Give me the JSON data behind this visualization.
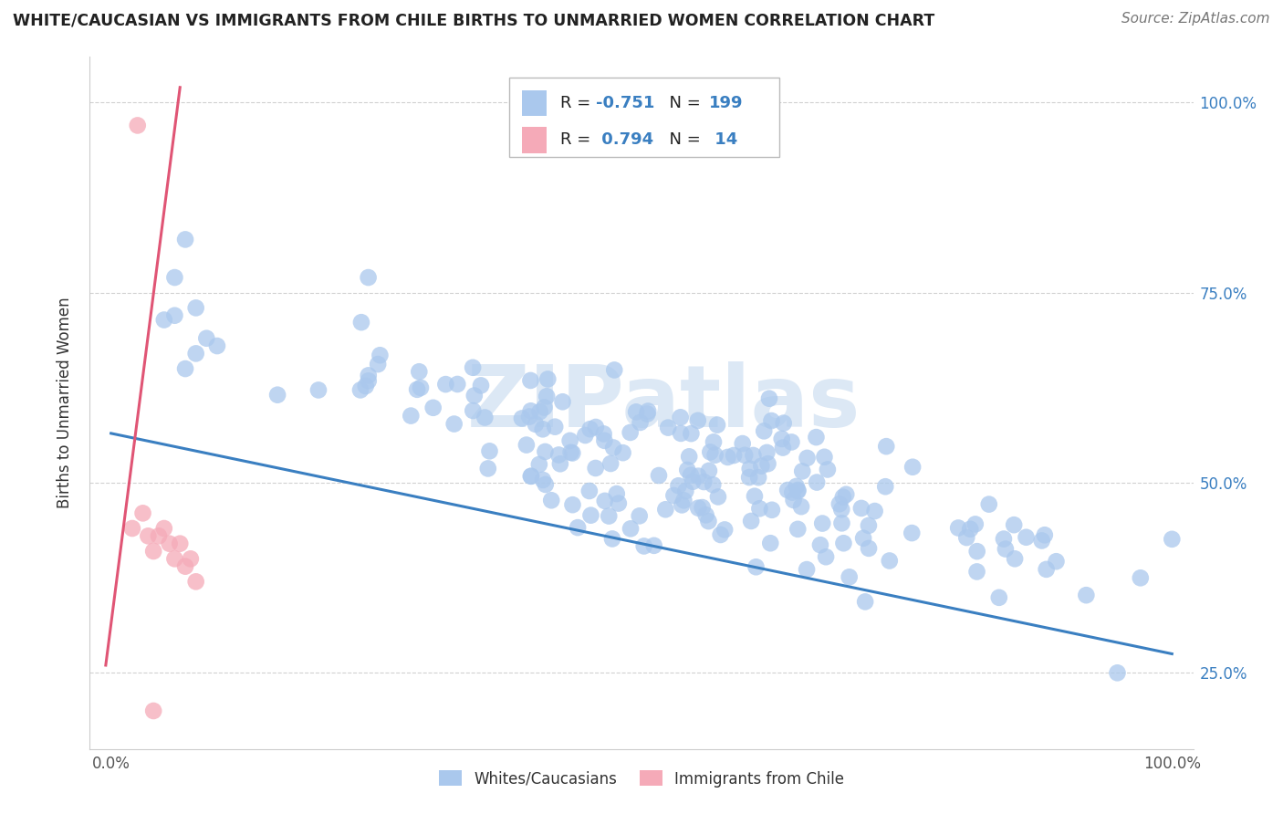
{
  "title": "WHITE/CAUCASIAN VS IMMIGRANTS FROM CHILE BIRTHS TO UNMARRIED WOMEN CORRELATION CHART",
  "source": "Source: ZipAtlas.com",
  "ylabel": "Births to Unmarried Women",
  "xlim": [
    -0.02,
    1.02
  ],
  "ylim": [
    0.15,
    1.06
  ],
  "yticks": [
    0.25,
    0.5,
    0.75,
    1.0
  ],
  "ytick_labels": [
    "25.0%",
    "50.0%",
    "75.0%",
    "100.0%"
  ],
  "xticks": [
    0.0,
    1.0
  ],
  "xtick_labels": [
    "0.0%",
    "100.0%"
  ],
  "r_blue": -0.751,
  "n_blue": 199,
  "r_pink": 0.794,
  "n_pink": 14,
  "blue_color": "#aac8ed",
  "pink_color": "#f5aab8",
  "blue_line_color": "#3a7fc1",
  "pink_line_color": "#e05575",
  "watermark_text": "ZIPatlas",
  "watermark_color": "#dce8f5",
  "legend_label_blue": "Whites/Caucasians",
  "legend_label_pink": "Immigrants from Chile",
  "blue_line_x0": 0.0,
  "blue_line_y0": 0.565,
  "blue_line_x1": 1.0,
  "blue_line_y1": 0.275,
  "pink_line_x0": -0.005,
  "pink_line_y0": 0.26,
  "pink_line_x1": 0.065,
  "pink_line_y1": 1.02,
  "legend_r_blue": "R = -0.751",
  "legend_n_blue": "N = 199",
  "legend_r_pink": "R =  0.794",
  "legend_n_pink": "N =  14"
}
